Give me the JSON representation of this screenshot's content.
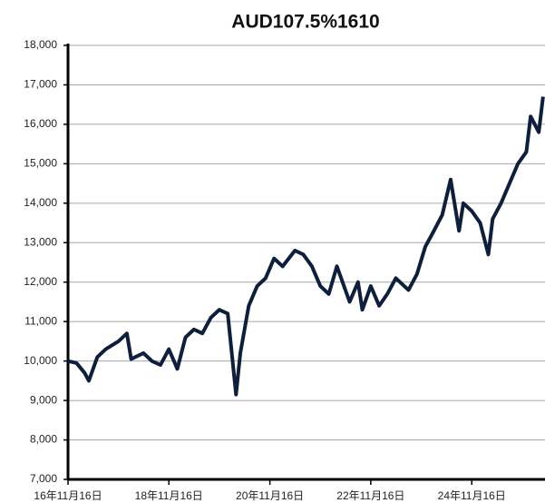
{
  "chart_data": {
    "type": "line",
    "title": "AUD107.5%1610",
    "x": [
      "2016-11-16",
      "2017-01-16",
      "2017-03-16",
      "2017-04-16",
      "2017-06-16",
      "2017-08-16",
      "2017-11-16",
      "2018-01-16",
      "2018-02-16",
      "2018-05-16",
      "2018-07-16",
      "2018-09-16",
      "2018-11-16",
      "2019-01-16",
      "2019-03-16",
      "2019-05-16",
      "2019-07-16",
      "2019-09-16",
      "2019-11-16",
      "2020-01-16",
      "2020-03-16",
      "2020-04-16",
      "2020-06-16",
      "2020-08-16",
      "2020-10-16",
      "2020-12-16",
      "2021-02-16",
      "2021-05-16",
      "2021-07-16",
      "2021-09-16",
      "2021-11-16",
      "2022-01-16",
      "2022-03-16",
      "2022-06-16",
      "2022-08-16",
      "2022-09-16",
      "2022-11-16",
      "2023-01-16",
      "2023-03-16",
      "2023-05-16",
      "2023-08-16",
      "2023-10-16",
      "2023-12-16",
      "2024-02-16",
      "2024-04-16",
      "2024-06-16",
      "2024-08-16",
      "2024-09-16",
      "2024-11-16",
      "2025-01-16",
      "2025-03-16",
      "2025-04-16",
      "2025-06-16",
      "2025-08-16",
      "2025-10-16",
      "2025-12-16",
      "2026-01-16",
      "2026-03-16",
      "2026-04-16"
    ],
    "series": [
      {
        "name": "AUD107.5%1610",
        "color": "#0d1f3c",
        "values": [
          10000,
          9950,
          9700,
          9500,
          10100,
          10300,
          10500,
          10700,
          10050,
          10200,
          10000,
          9900,
          10300,
          9800,
          10600,
          10800,
          10700,
          11100,
          11300,
          11200,
          9150,
          10200,
          11400,
          11900,
          12100,
          12600,
          12400,
          12800,
          12700,
          12400,
          11900,
          11700,
          12400,
          11500,
          12000,
          11300,
          11900,
          11400,
          11700,
          12100,
          11800,
          12200,
          12900,
          13300,
          13700,
          14600,
          13300,
          14000,
          13800,
          13500,
          12700,
          13600,
          14000,
          14500,
          15000,
          15300,
          16200,
          15800,
          16700
        ]
      }
    ],
    "xlim": [
      "2016-11-16",
      "2026-04-30"
    ],
    "xticks": [
      {
        "value": "2016-11-16",
        "label": "16年11月16日"
      },
      {
        "value": "2018-11-16",
        "label": "18年11月16日"
      },
      {
        "value": "2020-11-16",
        "label": "20年11月16日"
      },
      {
        "value": "2022-11-16",
        "label": "22年11月16日"
      },
      {
        "value": "2024-11-16",
        "label": "24年11月16日"
      }
    ],
    "ylim": [
      7000,
      18000
    ],
    "yticks": [
      {
        "value": 7000,
        "label": "7,000"
      },
      {
        "value": 8000,
        "label": "8,000"
      },
      {
        "value": 9000,
        "label": "9,000"
      },
      {
        "value": 10000,
        "label": "10,000"
      },
      {
        "value": 11000,
        "label": "11,000"
      },
      {
        "value": 12000,
        "label": "12,000"
      },
      {
        "value": 13000,
        "label": "13,000"
      },
      {
        "value": 14000,
        "label": "14,000"
      },
      {
        "value": 15000,
        "label": "15,000"
      },
      {
        "value": 16000,
        "label": "16,000"
      },
      {
        "value": 17000,
        "label": "17,000"
      },
      {
        "value": 18000,
        "label": "18,000"
      }
    ],
    "grid": true
  }
}
